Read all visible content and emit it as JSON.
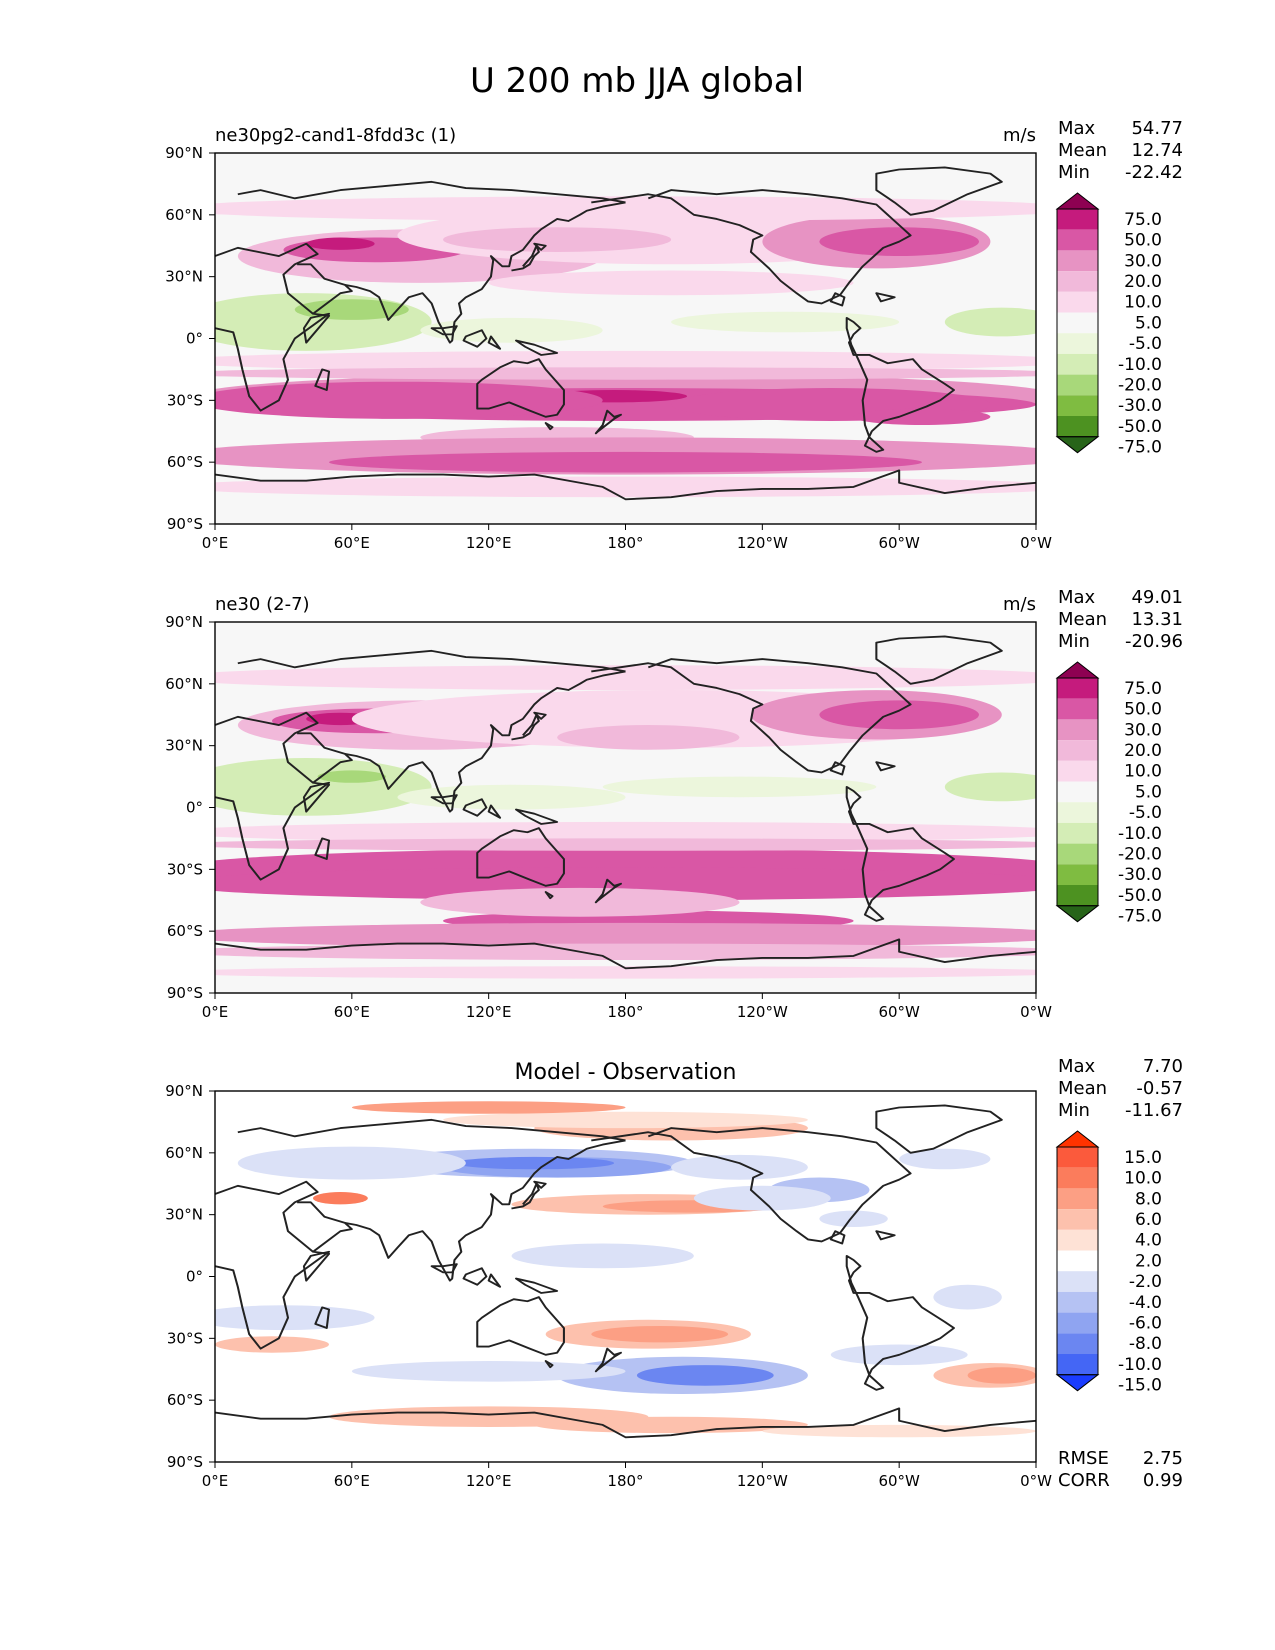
{
  "chart_data": {
    "type": "heatmap",
    "title": "U 200 mb JJA global",
    "units": "m/s",
    "x_ticks": [
      "0°E",
      "60°E",
      "120°E",
      "180°",
      "120°W",
      "60°W",
      "0°W"
    ],
    "y_ticks": [
      "90°N",
      "60°N",
      "30°N",
      "0°",
      "30°S",
      "60°S",
      "90°S"
    ],
    "xlim": [
      0,
      360
    ],
    "ylim": [
      -90,
      90
    ],
    "panels": [
      {
        "id": "test",
        "title_left": "ne30pg2-cand1-8fdd3c (1)",
        "title_center": "",
        "units": "m/s",
        "stats": [
          {
            "label": "Max",
            "value": "54.77"
          },
          {
            "label": "Mean",
            "value": "12.74"
          },
          {
            "label": "Min",
            "value": "-22.42"
          }
        ],
        "extra_stats": [],
        "colorbar_levels": [
          "75.0",
          "50.0",
          "30.0",
          "20.0",
          "10.0",
          "5.0",
          "-5.0",
          "-10.0",
          "-20.0",
          "-30.0",
          "-50.0",
          "-75.0"
        ],
        "colorbar_colors": [
          "#8e0152",
          "#c51b7d",
          "#d957a5",
          "#e793c3",
          "#f1b9da",
          "#fad9ec",
          "#f7f7f7",
          "#ecf6dc",
          "#d4edb6",
          "#a8d87a",
          "#7fbc41",
          "#4d9221",
          "#276419"
        ]
      },
      {
        "id": "reference",
        "title_left": "ne30 (2-7)",
        "title_center": "",
        "units": "m/s",
        "stats": [
          {
            "label": "Max",
            "value": "49.01"
          },
          {
            "label": "Mean",
            "value": "13.31"
          },
          {
            "label": "Min",
            "value": "-20.96"
          }
        ],
        "extra_stats": [],
        "colorbar_levels": [
          "75.0",
          "50.0",
          "30.0",
          "20.0",
          "10.0",
          "5.0",
          "-5.0",
          "-10.0",
          "-20.0",
          "-30.0",
          "-50.0",
          "-75.0"
        ],
        "colorbar_colors": [
          "#8e0152",
          "#c51b7d",
          "#d957a5",
          "#e793c3",
          "#f1b9da",
          "#fad9ec",
          "#f7f7f7",
          "#ecf6dc",
          "#d4edb6",
          "#a8d87a",
          "#7fbc41",
          "#4d9221",
          "#276419"
        ]
      },
      {
        "id": "difference",
        "title_left": "",
        "title_center": "Model - Observation",
        "units": "",
        "stats": [
          {
            "label": "Max",
            "value": "7.70"
          },
          {
            "label": "Mean",
            "value": "-0.57"
          },
          {
            "label": "Min",
            "value": "-11.67"
          }
        ],
        "extra_stats": [
          {
            "label": "RMSE",
            "value": "2.75"
          },
          {
            "label": "CORR",
            "value": "0.99"
          }
        ],
        "colorbar_levels": [
          "15.0",
          "10.0",
          "8.0",
          "6.0",
          "4.0",
          "2.0",
          "-2.0",
          "-4.0",
          "-6.0",
          "-8.0",
          "-10.0",
          "-15.0"
        ],
        "colorbar_colors": [
          "#ff3300",
          "#fb5a3c",
          "#fb7c5c",
          "#fc9f84",
          "#fdc1ad",
          "#fee2d6",
          "#ffffff",
          "#dbe1f7",
          "#b5c2f3",
          "#8fa4f1",
          "#6b86f1",
          "#4466f5",
          "#1a3cff"
        ]
      }
    ]
  }
}
